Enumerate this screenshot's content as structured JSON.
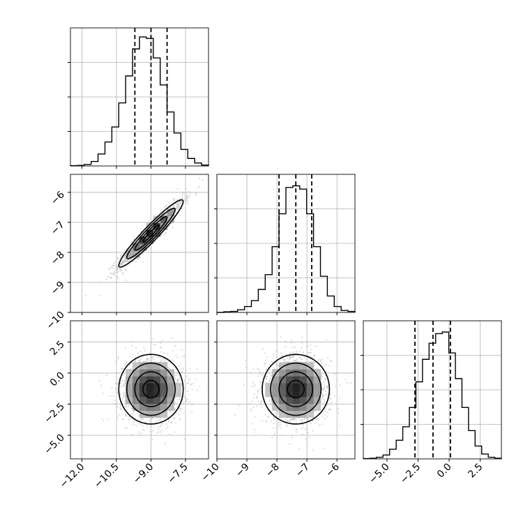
{
  "chart_data": {
    "type": "corner",
    "grid": true,
    "parameters": [
      {
        "range": [
          -12.5,
          -6.5
        ],
        "ticks": [
          -12.0,
          -10.5,
          -9.0,
          -7.5
        ],
        "tick_labels": [
          "−12.0",
          "−10.5",
          "−9.0",
          "−7.5"
        ],
        "quantiles": [
          -9.7,
          -9.0,
          -8.3
        ]
      },
      {
        "range": [
          -10.0,
          -5.4
        ],
        "ticks": [
          -10,
          -9,
          -8,
          -7,
          -6
        ],
        "tick_labels": [
          "−10",
          "−9",
          "−8",
          "−7",
          "−6"
        ],
        "quantiles": [
          -7.93,
          -7.37,
          -6.84
        ]
      },
      {
        "range": [
          -6.9,
          4.2
        ],
        "ticks": [
          -5.0,
          -2.5,
          0.0,
          2.5
        ],
        "tick_labels": [
          "−5.0",
          "−2.5",
          "0.0",
          "2.5"
        ],
        "quantiles": [
          -2.75,
          -1.3,
          0.1
        ]
      }
    ],
    "histograms": [
      {
        "param": 0,
        "counts": [
          1,
          2,
          5,
          15,
          40,
          80,
          130,
          210,
          300,
          390,
          430,
          425,
          360,
          270,
          180,
          110,
          55,
          25,
          10,
          3
        ],
        "ymax": 460
      },
      {
        "param": 1,
        "counts": [
          0,
          2,
          3,
          8,
          18,
          36,
          70,
          115,
          200,
          300,
          380,
          385,
          375,
          300,
          200,
          110,
          50,
          18,
          6,
          3
        ],
        "ymax": 420
      },
      {
        "param": 2,
        "counts": [
          1,
          2,
          5,
          12,
          30,
          58,
          100,
          160,
          240,
          310,
          360,
          390,
          395,
          330,
          250,
          160,
          88,
          40,
          15,
          5,
          2
        ],
        "ymax": 430
      }
    ],
    "pairs": [
      {
        "x_param": 0,
        "y_param": 1,
        "mean": [
          -9.0,
          -7.37
        ],
        "std": [
          0.7,
          0.56
        ],
        "corr": 0.95
      },
      {
        "x_param": 0,
        "y_param": 2,
        "mean": [
          -9.0,
          -1.3
        ],
        "std": [
          0.7,
          1.4
        ],
        "corr": 0.0
      },
      {
        "x_param": 1,
        "y_param": 2,
        "mean": [
          -7.37,
          -1.3
        ],
        "std": [
          0.56,
          1.4
        ],
        "corr": 0.0
      }
    ]
  }
}
